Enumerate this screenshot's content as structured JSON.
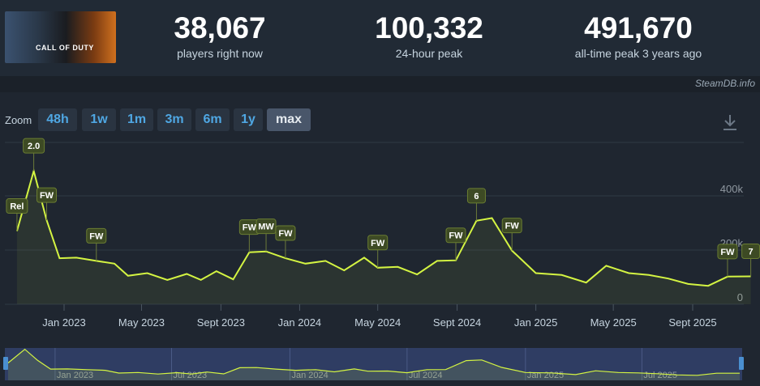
{
  "stats": [
    {
      "value": "38,067",
      "label": "players right now"
    },
    {
      "value": "100,332",
      "label": "24-hour peak"
    },
    {
      "value": "491,670",
      "label": "all-time peak 3 years ago"
    }
  ],
  "game_image_text": "CALL OF DUTY",
  "credit": "SteamDB.info",
  "zoom": {
    "label": "Zoom",
    "buttons": [
      "48h",
      "1w",
      "1m",
      "3m",
      "6m",
      "1y",
      "max"
    ],
    "active": "max"
  },
  "colors": {
    "line": "#d4f442",
    "background": "#1b2129",
    "badge": "#3d4a24",
    "navigator_fill": "#2f3d63"
  },
  "chart_data": {
    "type": "line",
    "ylim": [
      0,
      500000
    ],
    "y_ticks": [
      {
        "value": 0,
        "label": "0"
      },
      {
        "value": 200000,
        "label": "200k"
      },
      {
        "value": 400000,
        "label": "400k"
      }
    ],
    "x_ticks": [
      {
        "date": "2023-01-01",
        "label": "Jan 2023"
      },
      {
        "date": "2023-05-01",
        "label": "May 2023"
      },
      {
        "date": "2023-09-01",
        "label": "Sept 2023"
      },
      {
        "date": "2024-01-01",
        "label": "Jan 2024"
      },
      {
        "date": "2024-05-01",
        "label": "May 2024"
      },
      {
        "date": "2024-09-01",
        "label": "Sept 2024"
      },
      {
        "date": "2025-01-01",
        "label": "Jan 2025"
      },
      {
        "date": "2025-05-01",
        "label": "May 2025"
      },
      {
        "date": "2025-09-01",
        "label": "Sept 2025"
      }
    ],
    "series": [
      {
        "points": [
          [
            "2022-10-20",
            270000
          ],
          [
            "2022-11-15",
            492000
          ],
          [
            "2022-12-05",
            310000
          ],
          [
            "2022-12-25",
            170000
          ],
          [
            "2023-01-20",
            172000
          ],
          [
            "2023-02-20",
            160000
          ],
          [
            "2023-03-20",
            150000
          ],
          [
            "2023-04-10",
            105000
          ],
          [
            "2023-05-10",
            115000
          ],
          [
            "2023-06-10",
            90000
          ],
          [
            "2023-07-10",
            112000
          ],
          [
            "2023-08-01",
            90000
          ],
          [
            "2023-08-25",
            122000
          ],
          [
            "2023-09-20",
            92000
          ],
          [
            "2023-10-15",
            192000
          ],
          [
            "2023-11-10",
            195000
          ],
          [
            "2023-12-10",
            170000
          ],
          [
            "2024-01-10",
            150000
          ],
          [
            "2024-02-10",
            160000
          ],
          [
            "2024-03-10",
            125000
          ],
          [
            "2024-04-10",
            172000
          ],
          [
            "2024-05-01",
            135000
          ],
          [
            "2024-06-01",
            138000
          ],
          [
            "2024-07-01",
            110000
          ],
          [
            "2024-08-01",
            160000
          ],
          [
            "2024-08-30",
            162000
          ],
          [
            "2024-10-01",
            308000
          ],
          [
            "2024-10-25",
            318000
          ],
          [
            "2024-11-25",
            198000
          ],
          [
            "2025-01-01",
            115000
          ],
          [
            "2025-02-10",
            108000
          ],
          [
            "2025-03-20",
            80000
          ],
          [
            "2025-04-20",
            142000
          ],
          [
            "2025-05-25",
            115000
          ],
          [
            "2025-06-25",
            108000
          ],
          [
            "2025-07-25",
            95000
          ],
          [
            "2025-08-25",
            75000
          ],
          [
            "2025-09-25",
            68000
          ],
          [
            "2025-10-25",
            102000
          ],
          [
            "2025-11-30",
            103000
          ]
        ]
      }
    ],
    "annotations": [
      {
        "date": "2022-10-20",
        "label": "Rel"
      },
      {
        "date": "2022-11-15",
        "label": "2.0"
      },
      {
        "date": "2022-12-05",
        "label": "FW"
      },
      {
        "date": "2023-02-20",
        "label": "FW"
      },
      {
        "date": "2023-10-15",
        "label": "FW"
      },
      {
        "date": "2023-11-10",
        "label": "MW"
      },
      {
        "date": "2023-12-10",
        "label": "FW"
      },
      {
        "date": "2024-05-01",
        "label": "FW"
      },
      {
        "date": "2024-08-30",
        "label": "FW"
      },
      {
        "date": "2024-10-01",
        "label": "6"
      },
      {
        "date": "2024-11-25",
        "label": "FW"
      },
      {
        "date": "2025-10-25",
        "label": "FW"
      },
      {
        "date": "2025-11-30",
        "label": "7"
      }
    ],
    "navigator": {
      "labels": [
        {
          "date": "2023-01-01",
          "label": "Jan 2023"
        },
        {
          "date": "2023-07-01",
          "label": "Jul 2023"
        },
        {
          "date": "2024-01-01",
          "label": "Jan 2024"
        },
        {
          "date": "2024-07-01",
          "label": "Jul 2024"
        },
        {
          "date": "2025-01-01",
          "label": "Jan 2025"
        },
        {
          "date": "2025-07-01",
          "label": "Jul 2025"
        }
      ]
    }
  }
}
